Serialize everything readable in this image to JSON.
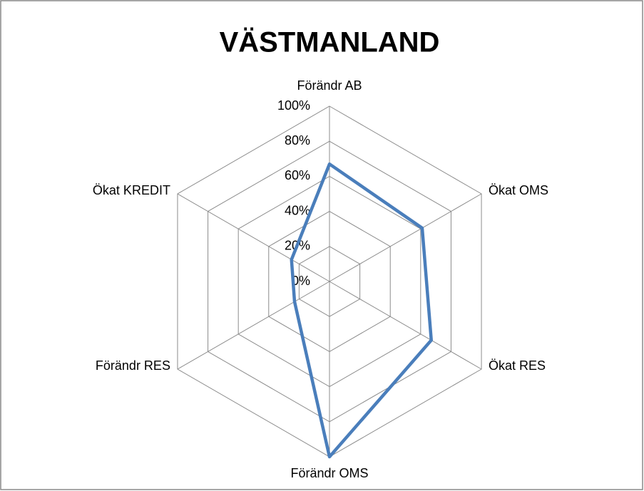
{
  "chart_data": {
    "type": "radar",
    "title": "VÄSTMANLAND",
    "categories": [
      "Förändr AB",
      "Ökat OMS",
      "Ökat RES",
      "Förändr OMS",
      "Förändr RES",
      "Ökat KREDIT"
    ],
    "values": [
      67,
      61,
      67,
      100,
      23,
      25
    ],
    "color": "#4a7ebb",
    "rlim": [
      0,
      100
    ],
    "rticks": [
      {
        "value": 0,
        "label": "0%"
      },
      {
        "value": 20,
        "label": "20%"
      },
      {
        "value": 40,
        "label": "40%"
      },
      {
        "value": 60,
        "label": "60%"
      },
      {
        "value": 80,
        "label": "80%"
      },
      {
        "value": 100,
        "label": "100%"
      }
    ],
    "grid": true
  }
}
